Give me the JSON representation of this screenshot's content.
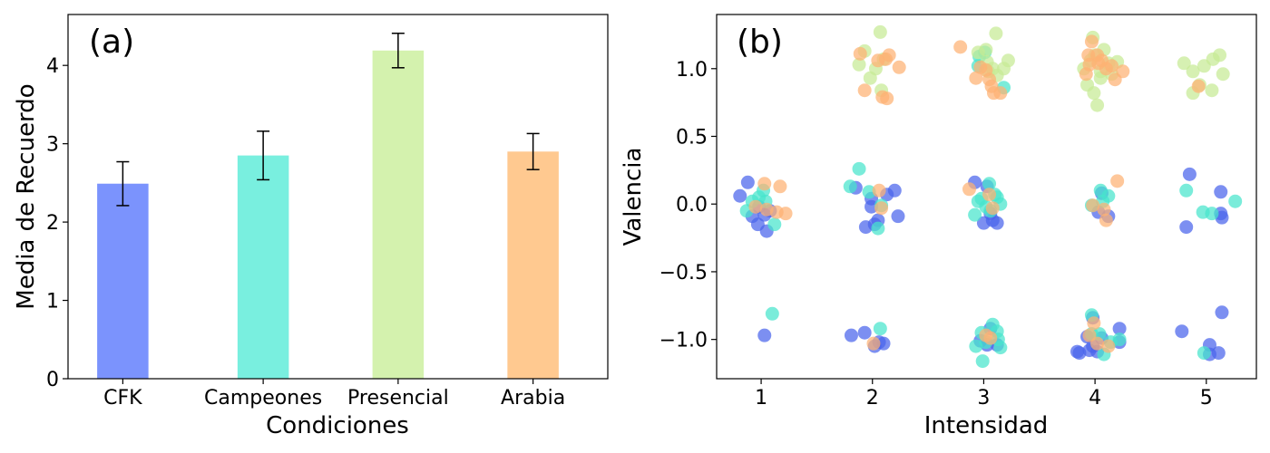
{
  "chart_data": [
    {
      "type": "bar",
      "panel_label": "(a)",
      "xlabel": "Condiciones",
      "ylabel": "Media de Recuerdo",
      "categories": [
        "CFK",
        "Campeones",
        "Presencial",
        "Arabia"
      ],
      "values": [
        2.49,
        2.85,
        4.19,
        2.9
      ],
      "errors": [
        0.28,
        0.31,
        0.22,
        0.23
      ],
      "colors": [
        "#7b93fd",
        "#79efdf",
        "#d4f2ae",
        "#ffc990"
      ],
      "ylim": [
        0,
        4.65
      ],
      "yticks": [
        0,
        1,
        2,
        3,
        4
      ],
      "grid": false
    },
    {
      "type": "scatter",
      "panel_label": "(b)",
      "xlabel": "Intensidad",
      "ylabel": "Valencia",
      "xlim": [
        0.6,
        5.45
      ],
      "ylim": [
        -1.29,
        1.4
      ],
      "xticks": [
        1,
        2,
        3,
        4,
        5
      ],
      "yticks": [
        1.0,
        0.5,
        0.0,
        -0.5,
        -1.0
      ],
      "ytick_labels": [
        "1.0",
        "0.5",
        "0.0",
        "−0.5",
        "−1.0"
      ],
      "grid": false,
      "series": [
        {
          "color": "#4a64ec",
          "points": [
            [
              0.81,
              0.06
            ],
            [
              0.88,
              0.16
            ],
            [
              0.92,
              -0.09
            ],
            [
              0.97,
              -0.15
            ],
            [
              1.05,
              -0.2
            ],
            [
              1.03,
              -0.08
            ],
            [
              0.98,
              -0.02
            ],
            [
              1.08,
              -0.05
            ],
            [
              1.03,
              -0.97
            ],
            [
              1.85,
              0.12
            ],
            [
              1.99,
              0.04
            ],
            [
              2.05,
              -0.12
            ],
            [
              2.13,
              0.07
            ],
            [
              2.2,
              0.1
            ],
            [
              2.23,
              -0.09
            ],
            [
              1.94,
              -0.17
            ],
            [
              2.02,
              -0.15
            ],
            [
              1.99,
              -0.02
            ],
            [
              1.81,
              -0.97
            ],
            [
              1.93,
              -0.95
            ],
            [
              2.02,
              -1.05
            ],
            [
              2.06,
              -1.02
            ],
            [
              2.1,
              -1.03
            ],
            [
              2.92,
              0.16
            ],
            [
              3.03,
              0.13
            ],
            [
              3.08,
              -0.12
            ],
            [
              3.12,
              -0.14
            ],
            [
              3.0,
              -0.14
            ],
            [
              3.06,
              -0.07
            ],
            [
              2.97,
              -1.01
            ],
            [
              3.06,
              -0.92
            ],
            [
              3.12,
              -1.04
            ],
            [
              3.03,
              -1.04
            ],
            [
              4.06,
              0.08
            ],
            [
              4.03,
              -0.06
            ],
            [
              4.12,
              -0.09
            ],
            [
              3.98,
              -0.84
            ],
            [
              3.93,
              -0.98
            ],
            [
              4.06,
              -0.99
            ],
            [
              3.98,
              -1.05
            ],
            [
              4.02,
              -1.09
            ],
            [
              4.22,
              -0.92
            ],
            [
              3.95,
              -1.08
            ],
            [
              3.86,
              -1.1
            ],
            [
              3.84,
              -1.09
            ],
            [
              4.22,
              -1.02
            ],
            [
              4.85,
              0.22
            ],
            [
              5.13,
              0.09
            ],
            [
              4.82,
              -0.17
            ],
            [
              5.13,
              -0.07
            ],
            [
              5.14,
              -0.1
            ],
            [
              5.14,
              -0.8
            ],
            [
              4.78,
              -0.94
            ],
            [
              5.03,
              -1.04
            ],
            [
              5.03,
              -1.11
            ],
            [
              5.11,
              -1.1
            ]
          ]
        },
        {
          "color": "#47e4cc",
          "points": [
            [
              0.87,
              -0.05
            ],
            [
              0.92,
              0.02
            ],
            [
              0.98,
              0.05
            ],
            [
              1.04,
              0.02
            ],
            [
              1.12,
              -0.15
            ],
            [
              1.02,
              0.1
            ],
            [
              1.1,
              -0.81
            ],
            [
              1.8,
              0.13
            ],
            [
              1.88,
              0.26
            ],
            [
              1.97,
              0.09
            ],
            [
              2.08,
              -0.01
            ],
            [
              2.05,
              -0.18
            ],
            [
              2.07,
              -0.92
            ],
            [
              2.92,
              -0.08
            ],
            [
              2.98,
              0.04
            ],
            [
              3.05,
              0.15
            ],
            [
              3.15,
              0.0
            ],
            [
              2.95,
              0.02
            ],
            [
              3.12,
              0.05
            ],
            [
              3.02,
              -0.02
            ],
            [
              3.1,
              0.07
            ],
            [
              3.06,
              -0.05
            ],
            [
              2.96,
              1.09
            ],
            [
              2.95,
              1.02
            ],
            [
              3.01,
              1.12
            ],
            [
              3.18,
              0.86
            ],
            [
              2.98,
              -0.95
            ],
            [
              3.08,
              -0.89
            ],
            [
              3.12,
              -0.94
            ],
            [
              3.02,
              -1.02
            ],
            [
              3.13,
              -1.0
            ],
            [
              2.93,
              -1.05
            ],
            [
              2.99,
              -1.16
            ],
            [
              3.15,
              -1.06
            ],
            [
              3.97,
              -0.01
            ],
            [
              4.05,
              0.1
            ],
            [
              4.12,
              0.06
            ],
            [
              4.07,
              0.02
            ],
            [
              3.97,
              -0.82
            ],
            [
              3.97,
              -0.96
            ],
            [
              4.04,
              -0.96
            ],
            [
              4.08,
              -1.11
            ],
            [
              4.14,
              -1.02
            ],
            [
              4.22,
              -1.0
            ],
            [
              4.82,
              0.1
            ],
            [
              4.97,
              -0.06
            ],
            [
              5.05,
              -0.07
            ],
            [
              5.26,
              0.02
            ],
            [
              4.98,
              -1.1
            ]
          ]
        },
        {
          "color": "#c6ea94",
          "points": [
            [
              1.88,
              1.03
            ],
            [
              1.93,
              1.13
            ],
            [
              2.03,
              1.0
            ],
            [
              2.1,
              1.07
            ],
            [
              1.98,
              0.93
            ],
            [
              2.08,
              0.84
            ],
            [
              2.07,
              1.27
            ],
            [
              2.95,
              1.12
            ],
            [
              3.03,
              1.05
            ],
            [
              3.11,
              1.26
            ],
            [
              3.22,
              1.06
            ],
            [
              3.04,
              0.98
            ],
            [
              3.12,
              0.95
            ],
            [
              3.08,
              1.0
            ],
            [
              3.18,
              1.0
            ],
            [
              3.02,
              1.14
            ],
            [
              3.98,
              1.23
            ],
            [
              4.08,
              1.14
            ],
            [
              3.9,
              1.0
            ],
            [
              3.93,
              0.88
            ],
            [
              4.05,
              0.93
            ],
            [
              4.12,
              1.04
            ],
            [
              4.15,
              0.96
            ],
            [
              3.99,
              0.82
            ],
            [
              4.02,
              0.73
            ],
            [
              4.2,
              1.05
            ],
            [
              4.0,
              1.1
            ],
            [
              4.05,
              0.98
            ],
            [
              3.96,
              1.06
            ],
            [
              4.8,
              1.04
            ],
            [
              4.88,
              0.98
            ],
            [
              4.98,
              1.02
            ],
            [
              5.06,
              1.07
            ],
            [
              5.12,
              1.1
            ],
            [
              5.15,
              0.96
            ],
            [
              5.05,
              0.84
            ],
            [
              4.88,
              0.82
            ],
            [
              4.94,
              0.88
            ]
          ]
        },
        {
          "color": "#fdb173",
          "points": [
            [
              0.95,
              -0.02
            ],
            [
              1.03,
              0.15
            ],
            [
              1.17,
              0.13
            ],
            [
              1.05,
              -0.04
            ],
            [
              1.14,
              -0.06
            ],
            [
              1.22,
              -0.07
            ],
            [
              1.89,
              1.11
            ],
            [
              2.05,
              1.06
            ],
            [
              2.12,
              1.07
            ],
            [
              2.15,
              1.1
            ],
            [
              2.24,
              1.01
            ],
            [
              1.93,
              0.84
            ],
            [
              2.09,
              0.79
            ],
            [
              2.13,
              0.78
            ],
            [
              2.06,
              0.1
            ],
            [
              2.08,
              -0.03
            ],
            [
              2.01,
              -1.03
            ],
            [
              2.79,
              1.16
            ],
            [
              2.93,
              0.93
            ],
            [
              2.97,
              1.01
            ],
            [
              3.02,
              0.99
            ],
            [
              3.05,
              0.92
            ],
            [
              3.07,
              0.87
            ],
            [
              3.09,
              0.82
            ],
            [
              3.15,
              0.82
            ],
            [
              2.87,
              0.11
            ],
            [
              3.05,
              0.07
            ],
            [
              3.08,
              -0.03
            ],
            [
              3.02,
              -0.97
            ],
            [
              3.06,
              -0.99
            ],
            [
              3.97,
              1.2
            ],
            [
              4.02,
              1.1
            ],
            [
              4.06,
              1.06
            ],
            [
              4.1,
              1.0
            ],
            [
              4.15,
              1.02
            ],
            [
              4.25,
              0.98
            ],
            [
              4.18,
              0.92
            ],
            [
              3.95,
              1.03
            ],
            [
              4.03,
              1.04
            ],
            [
              3.94,
              1.1
            ],
            [
              3.92,
              0.96
            ],
            [
              4.2,
              0.17
            ],
            [
              3.98,
              -0.01
            ],
            [
              4.08,
              -0.04
            ],
            [
              4.1,
              -0.12
            ],
            [
              3.99,
              -0.88
            ],
            [
              3.95,
              -0.97
            ],
            [
              4.02,
              -1.03
            ],
            [
              4.12,
              -1.05
            ],
            [
              4.93,
              0.87
            ]
          ]
        }
      ]
    }
  ]
}
